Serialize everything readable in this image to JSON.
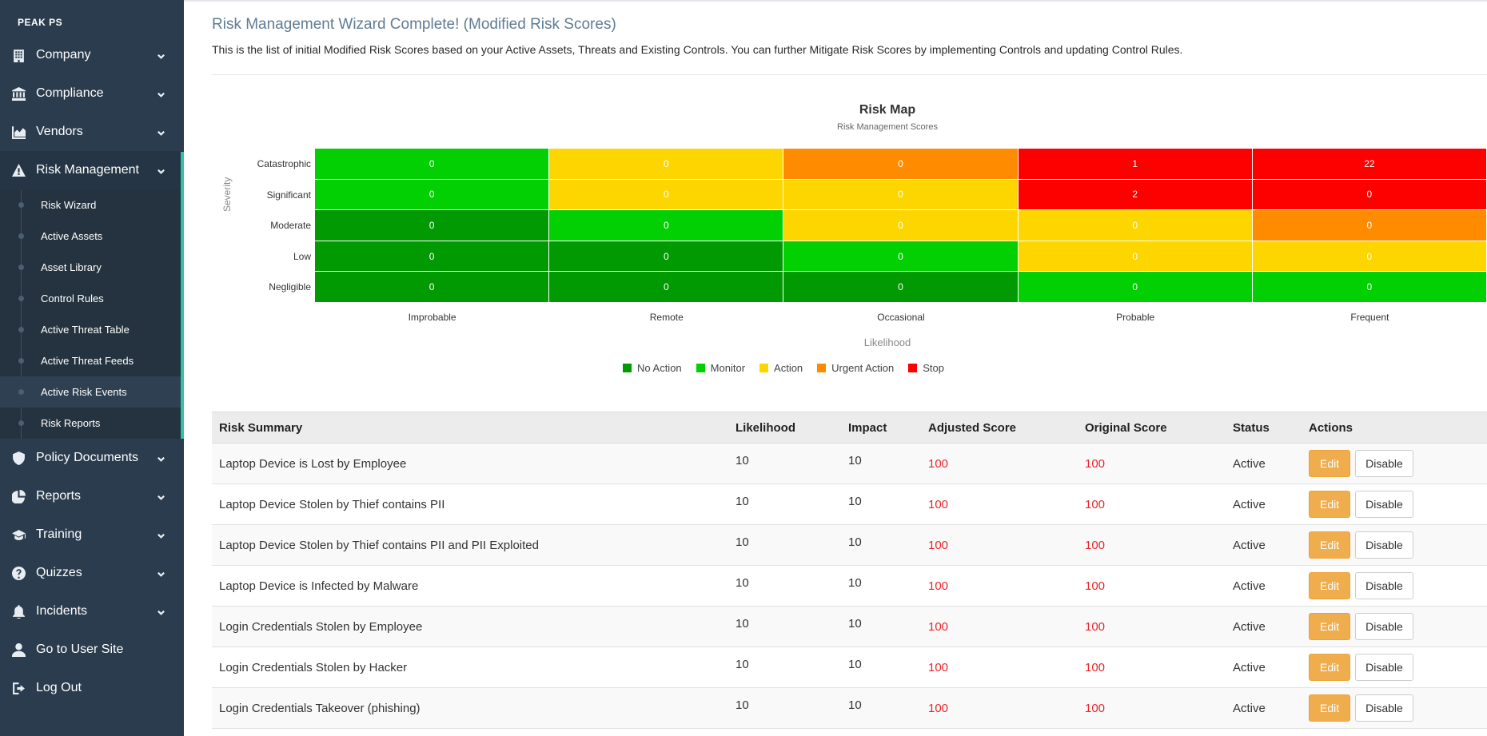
{
  "sidebar": {
    "brand": "PEAK PS",
    "items_top": [
      {
        "label": "Company",
        "icon": "building-icon"
      },
      {
        "label": "Compliance",
        "icon": "bank-icon"
      },
      {
        "label": "Vendors",
        "icon": "chart-area-icon"
      },
      {
        "label": "Risk Management",
        "icon": "warning-icon"
      }
    ],
    "submenu": [
      {
        "label": "Risk Wizard"
      },
      {
        "label": "Active Assets"
      },
      {
        "label": "Asset Library"
      },
      {
        "label": "Control Rules"
      },
      {
        "label": "Active Threat Table"
      },
      {
        "label": "Active Threat Feeds"
      },
      {
        "label": "Active Risk Events"
      },
      {
        "label": "Risk Reports"
      }
    ],
    "items_bottom": [
      {
        "label": "Policy Documents",
        "icon": "shield-icon"
      },
      {
        "label": "Reports",
        "icon": "pie-chart-icon"
      },
      {
        "label": "Training",
        "icon": "graduation-cap-icon"
      },
      {
        "label": "Quizzes",
        "icon": "question-circle-icon"
      },
      {
        "label": "Incidents",
        "icon": "bell-icon"
      },
      {
        "label": "Go to User Site",
        "icon": "user-icon"
      },
      {
        "label": "Log Out",
        "icon": "sign-out-icon"
      }
    ]
  },
  "header": {
    "title": "Risk Management Wizard Complete! (Modified Risk Scores)",
    "description": "This is the list of initial Modified Risk Scores based on your Active Assets, Threats and Existing Controls. You can further Mitigate Risk Scores by implementing Controls and updating Control Rules."
  },
  "colors": {
    "no_action": "#029a02",
    "monitor": "#02d002",
    "action": "#fdd600",
    "urgent": "#fe8b00",
    "stop": "#fd0000"
  },
  "chart_data": {
    "type": "heatmap",
    "title": "Risk Map",
    "subtitle": "Risk Management Scores",
    "xlabel": "Likelihood",
    "ylabel": "Severity",
    "x": [
      "Improbable",
      "Remote",
      "Occasional",
      "Probable",
      "Frequent"
    ],
    "y": [
      "Catastrophic",
      "Significant",
      "Moderate",
      "Low",
      "Negligible"
    ],
    "values": [
      [
        0,
        0,
        0,
        1,
        22
      ],
      [
        0,
        0,
        0,
        2,
        0
      ],
      [
        0,
        0,
        0,
        0,
        0
      ],
      [
        0,
        0,
        0,
        0,
        0
      ],
      [
        0,
        0,
        0,
        0,
        0
      ]
    ],
    "categories_matrix": [
      [
        "monitor",
        "action",
        "urgent",
        "stop",
        "stop"
      ],
      [
        "monitor",
        "action",
        "action",
        "stop",
        "stop"
      ],
      [
        "no_action",
        "monitor",
        "action",
        "action",
        "urgent"
      ],
      [
        "no_action",
        "no_action",
        "monitor",
        "action",
        "action"
      ],
      [
        "no_action",
        "no_action",
        "no_action",
        "monitor",
        "monitor"
      ]
    ],
    "legend": [
      {
        "name": "No Action",
        "key": "no_action"
      },
      {
        "name": "Monitor",
        "key": "monitor"
      },
      {
        "name": "Action",
        "key": "action"
      },
      {
        "name": "Urgent Action",
        "key": "urgent"
      },
      {
        "name": "Stop",
        "key": "stop"
      }
    ],
    "legend_position": "bottom-center"
  },
  "table": {
    "columns": [
      "Risk Summary",
      "Likelihood",
      "Impact",
      "Adjusted Score",
      "Original Score",
      "Status",
      "Actions"
    ],
    "edit_label": "Edit",
    "disable_label": "Disable",
    "rows": [
      {
        "summary": "Laptop Device is Lost by Employee",
        "likelihood": "10",
        "impact": "10",
        "adjusted": "100",
        "original": "100",
        "status": "Active"
      },
      {
        "summary": "Laptop Device Stolen by Thief contains PII",
        "likelihood": "10",
        "impact": "10",
        "adjusted": "100",
        "original": "100",
        "status": "Active"
      },
      {
        "summary": "Laptop Device Stolen by Thief contains PII and PII Exploited",
        "likelihood": "10",
        "impact": "10",
        "adjusted": "100",
        "original": "100",
        "status": "Active"
      },
      {
        "summary": "Laptop Device is Infected by Malware",
        "likelihood": "10",
        "impact": "10",
        "adjusted": "100",
        "original": "100",
        "status": "Active"
      },
      {
        "summary": "Login Credentials Stolen by Employee",
        "likelihood": "10",
        "impact": "10",
        "adjusted": "100",
        "original": "100",
        "status": "Active"
      },
      {
        "summary": "Login Credentials Stolen by Hacker",
        "likelihood": "10",
        "impact": "10",
        "adjusted": "100",
        "original": "100",
        "status": "Active"
      },
      {
        "summary": "Login Credentials Takeover (phishing)",
        "likelihood": "10",
        "impact": "10",
        "adjusted": "100",
        "original": "100",
        "status": "Active"
      }
    ]
  }
}
